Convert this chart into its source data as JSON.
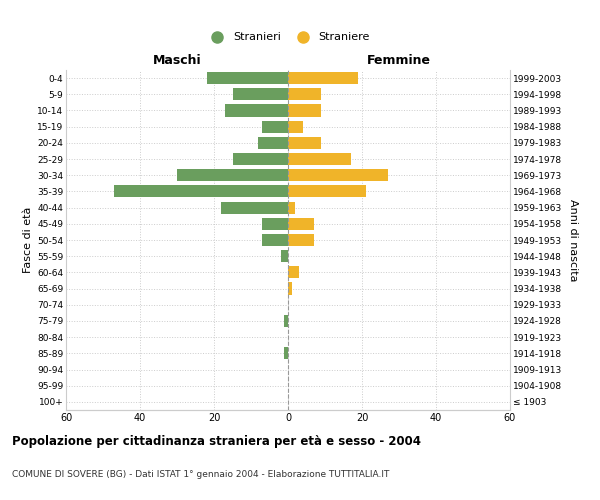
{
  "age_groups": [
    "100+",
    "95-99",
    "90-94",
    "85-89",
    "80-84",
    "75-79",
    "70-74",
    "65-69",
    "60-64",
    "55-59",
    "50-54",
    "45-49",
    "40-44",
    "35-39",
    "30-34",
    "25-29",
    "20-24",
    "15-19",
    "10-14",
    "5-9",
    "0-4"
  ],
  "birth_years": [
    "≤ 1903",
    "1904-1908",
    "1909-1913",
    "1914-1918",
    "1919-1923",
    "1924-1928",
    "1929-1933",
    "1934-1938",
    "1939-1943",
    "1944-1948",
    "1949-1953",
    "1954-1958",
    "1959-1963",
    "1964-1968",
    "1969-1973",
    "1974-1978",
    "1979-1983",
    "1984-1988",
    "1989-1993",
    "1994-1998",
    "1999-2003"
  ],
  "males": [
    0,
    0,
    0,
    1,
    0,
    1,
    0,
    0,
    0,
    2,
    7,
    7,
    18,
    47,
    30,
    15,
    8,
    7,
    17,
    15,
    22
  ],
  "females": [
    0,
    0,
    0,
    0,
    0,
    0,
    0,
    1,
    3,
    0,
    7,
    7,
    2,
    21,
    27,
    17,
    9,
    4,
    9,
    9,
    19
  ],
  "male_color": "#6a9e5e",
  "female_color": "#f0b429",
  "title": "Popolazione per cittadinanza straniera per età e sesso - 2004",
  "subtitle": "COMUNE DI SOVERE (BG) - Dati ISTAT 1° gennaio 2004 - Elaborazione TUTTITALIA.IT",
  "xlabel_left": "Maschi",
  "xlabel_right": "Femmine",
  "ylabel_left": "Fasce di età",
  "ylabel_right": "Anni di nascita",
  "legend_male": "Stranieri",
  "legend_female": "Straniere",
  "xlim": 60,
  "background_color": "#ffffff",
  "grid_color": "#cccccc"
}
